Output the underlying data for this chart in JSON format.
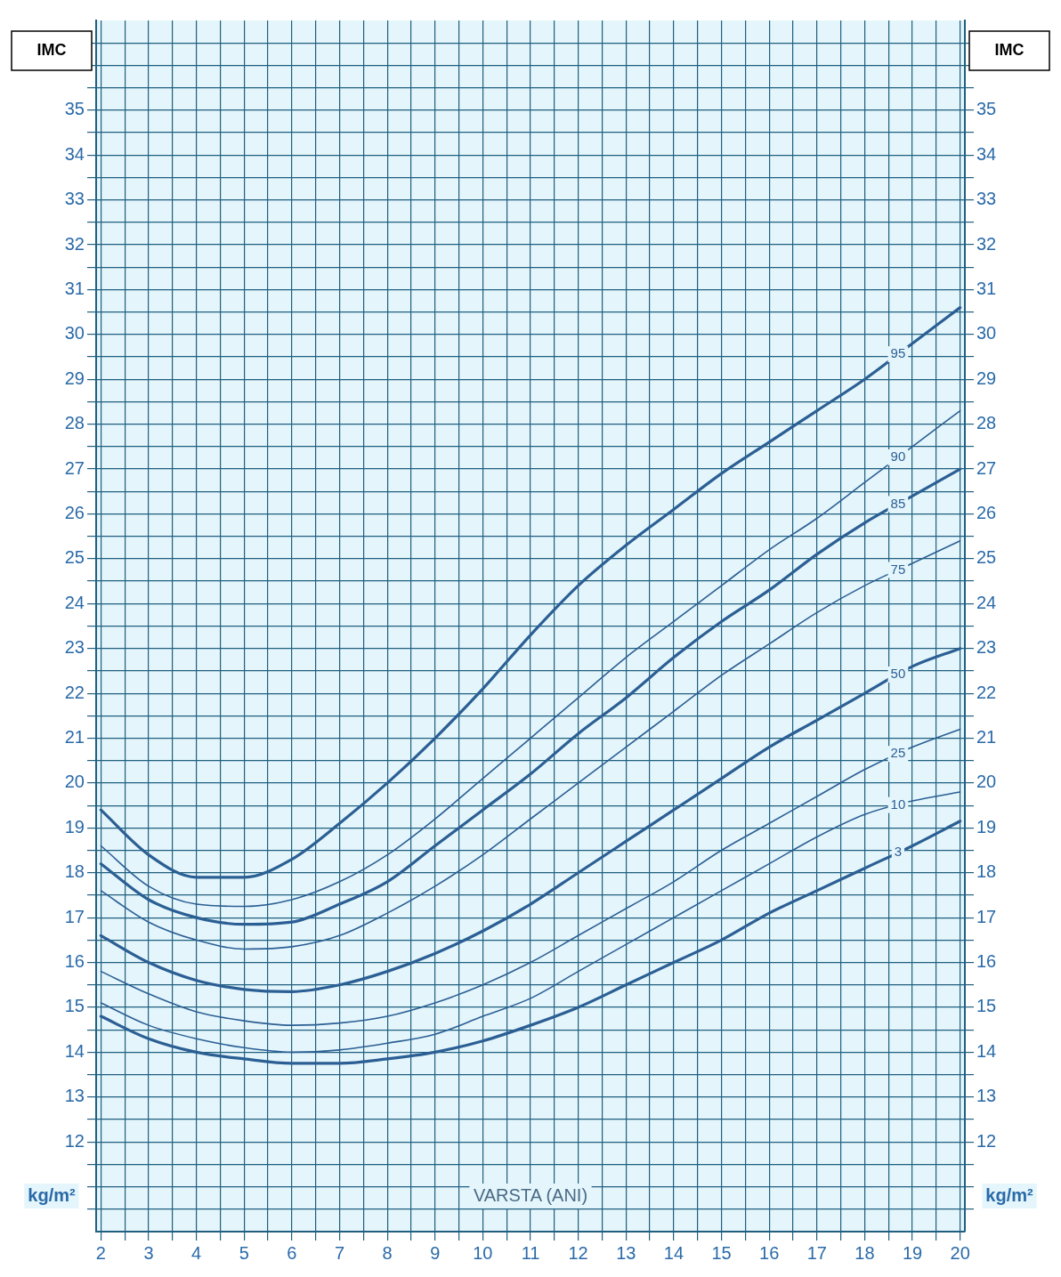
{
  "chart_data": {
    "type": "line",
    "ylabel": "IMC",
    "y2label": "IMC",
    "xlabel": "VARSTA (ANI)",
    "annotations": [
      "kg/m²",
      "kg/m²"
    ],
    "x": [
      2,
      3,
      4,
      5,
      6,
      7,
      8,
      9,
      10,
      11,
      12,
      13,
      14,
      15,
      16,
      17,
      18,
      19,
      20
    ],
    "series": [
      {
        "name": "95",
        "color": "#2b5f94",
        "values": [
          19.4,
          18.4,
          17.9,
          17.9,
          18.3,
          19.1,
          20.0,
          21.0,
          22.1,
          23.3,
          24.4,
          25.3,
          26.1,
          26.9,
          27.6,
          28.3,
          29.0,
          29.8,
          30.6
        ]
      },
      {
        "name": "90",
        "color": "#2b5f94",
        "values": [
          18.6,
          17.7,
          17.3,
          17.25,
          17.4,
          17.8,
          18.4,
          19.2,
          20.1,
          21.0,
          21.9,
          22.8,
          23.6,
          24.4,
          25.2,
          25.9,
          26.7,
          27.5,
          28.3
        ]
      },
      {
        "name": "85",
        "color": "#2b5f94",
        "values": [
          18.2,
          17.4,
          17.0,
          16.85,
          16.9,
          17.3,
          17.8,
          18.6,
          19.4,
          20.2,
          21.1,
          21.9,
          22.8,
          23.6,
          24.3,
          25.1,
          25.8,
          26.4,
          27.0
        ]
      },
      {
        "name": "75",
        "color": "#2b5f94",
        "values": [
          17.6,
          16.9,
          16.5,
          16.3,
          16.35,
          16.6,
          17.1,
          17.7,
          18.4,
          19.2,
          20.0,
          20.8,
          21.6,
          22.4,
          23.1,
          23.8,
          24.4,
          24.9,
          25.4
        ]
      },
      {
        "name": "50",
        "color": "#2b5f94",
        "values": [
          16.6,
          16.0,
          15.6,
          15.4,
          15.35,
          15.5,
          15.8,
          16.2,
          16.7,
          17.3,
          18.0,
          18.7,
          19.4,
          20.1,
          20.8,
          21.4,
          22.0,
          22.6,
          23.0
        ]
      },
      {
        "name": "25",
        "color": "#2b5f94",
        "values": [
          15.8,
          15.3,
          14.9,
          14.7,
          14.6,
          14.65,
          14.8,
          15.1,
          15.5,
          16.0,
          16.6,
          17.2,
          17.8,
          18.5,
          19.1,
          19.7,
          20.3,
          20.8,
          21.2
        ]
      },
      {
        "name": "10",
        "color": "#2b5f94",
        "values": [
          15.1,
          14.6,
          14.3,
          14.1,
          14.0,
          14.05,
          14.2,
          14.4,
          14.8,
          15.2,
          15.8,
          16.4,
          17.0,
          17.6,
          18.2,
          18.8,
          19.3,
          19.6,
          19.8
        ]
      },
      {
        "name": "3",
        "color": "#2b5f94",
        "values": [
          14.8,
          14.3,
          14.0,
          13.85,
          13.75,
          13.75,
          13.85,
          14.0,
          14.25,
          14.6,
          15.0,
          15.5,
          16.0,
          16.5,
          17.1,
          17.6,
          18.1,
          18.6,
          19.15
        ]
      }
    ],
    "xlim": [
      1.9,
      20.1
    ],
    "xticks": [
      2,
      {
        "value": 2.5,
        "label": null
      },
      3,
      {
        "value": 3.5,
        "label": null
      },
      4,
      {
        "value": 4.5,
        "label": null
      },
      5,
      {
        "value": 5.5,
        "label": null
      },
      6,
      {
        "value": 6.5,
        "label": null
      },
      7,
      {
        "value": 7.5,
        "label": null
      },
      8,
      {
        "value": 8.5,
        "label": null
      },
      9,
      {
        "value": 9.5,
        "label": null
      },
      10,
      {
        "value": 10.5,
        "label": null
      },
      11,
      {
        "value": 11.5,
        "label": null
      },
      12,
      {
        "value": 12.5,
        "label": null
      },
      13,
      {
        "value": 13.5,
        "label": null
      },
      14,
      {
        "value": 14.5,
        "label": null
      },
      15,
      {
        "value": 15.5,
        "label": null
      },
      16,
      {
        "value": 16.5,
        "label": null
      },
      17,
      {
        "value": 17.5,
        "label": null
      },
      18,
      {
        "value": 18.5,
        "label": null
      },
      19,
      {
        "value": 19.5,
        "label": null
      },
      20
    ],
    "ylim": [
      10,
      37
    ],
    "yticks": [
      {
        "value": 10.5,
        "label": null
      },
      {
        "value": 11,
        "label": null
      },
      {
        "value": 11.5,
        "label": null
      },
      12,
      {
        "value": 12.5,
        "label": null
      },
      13,
      {
        "value": 13.5,
        "label": null
      },
      14,
      {
        "value": 14.5,
        "label": null
      },
      15,
      {
        "value": 15.5,
        "label": null
      },
      16,
      {
        "value": 16.5,
        "label": null
      },
      17,
      {
        "value": 17.5,
        "label": null
      },
      18,
      {
        "value": 18.5,
        "label": null
      },
      19,
      {
        "value": 19.5,
        "label": null
      },
      20,
      {
        "value": 20.5,
        "label": null
      },
      21,
      {
        "value": 21.5,
        "label": null
      },
      22,
      {
        "value": 22.5,
        "label": null
      },
      23,
      {
        "value": 23.5,
        "label": null
      },
      24,
      {
        "value": 24.5,
        "label": null
      },
      25,
      {
        "value": 25.5,
        "label": null
      },
      26,
      {
        "value": 26.5,
        "label": null
      },
      27,
      {
        "value": 27.5,
        "label": null
      },
      28,
      {
        "value": 28.5,
        "label": null
      },
      29,
      {
        "value": 29.5,
        "label": null
      },
      30,
      {
        "value": 30.5,
        "label": null
      },
      31,
      {
        "value": 31.5,
        "label": null
      },
      32,
      {
        "value": 32.5,
        "label": null
      },
      33,
      {
        "value": 33.5,
        "label": null
      },
      34,
      {
        "value": 34.5,
        "label": null
      },
      35,
      {
        "value": 35.5,
        "label": null
      },
      {
        "value": 36,
        "label": null
      },
      {
        "value": 36.5,
        "label": null
      }
    ],
    "y2lim": [
      10,
      37
    ],
    "y2ticks": [
      {
        "value": 10.5,
        "label": null
      },
      {
        "value": 11,
        "label": null
      },
      {
        "value": 11.5,
        "label": null
      },
      12,
      {
        "value": 12.5,
        "label": null
      },
      13,
      {
        "value": 13.5,
        "label": null
      },
      14,
      {
        "value": 14.5,
        "label": null
      },
      15,
      {
        "value": 15.5,
        "label": null
      },
      16,
      {
        "value": 16.5,
        "label": null
      },
      17,
      {
        "value": 17.5,
        "label": null
      },
      18,
      {
        "value": 18.5,
        "label": null
      },
      19,
      {
        "value": 19.5,
        "label": null
      },
      20,
      {
        "value": 20.5,
        "label": null
      },
      21,
      {
        "value": 21.5,
        "label": null
      },
      22,
      {
        "value": 22.5,
        "label": null
      },
      23,
      {
        "value": 23.5,
        "label": null
      },
      24,
      {
        "value": 24.5,
        "label": null
      },
      25,
      {
        "value": 25.5,
        "label": null
      },
      26,
      {
        "value": 26.5,
        "label": null
      },
      27,
      {
        "value": 27.5,
        "label": null
      },
      28,
      {
        "value": 28.5,
        "label": null
      },
      29,
      {
        "value": 29.5,
        "label": null
      },
      30,
      {
        "value": 30.5,
        "label": null
      },
      31,
      {
        "value": 31.5,
        "label": null
      },
      32,
      {
        "value": 32.5,
        "label": null
      },
      33,
      {
        "value": 33.5,
        "label": null
      },
      34,
      {
        "value": 34.5,
        "label": null
      },
      35,
      {
        "value": 35.5,
        "label": null
      },
      {
        "value": 36,
        "label": null
      },
      {
        "value": 36.5,
        "label": null
      }
    ],
    "grid": true,
    "legend": false,
    "marker": "none",
    "line_style": "solid"
  }
}
